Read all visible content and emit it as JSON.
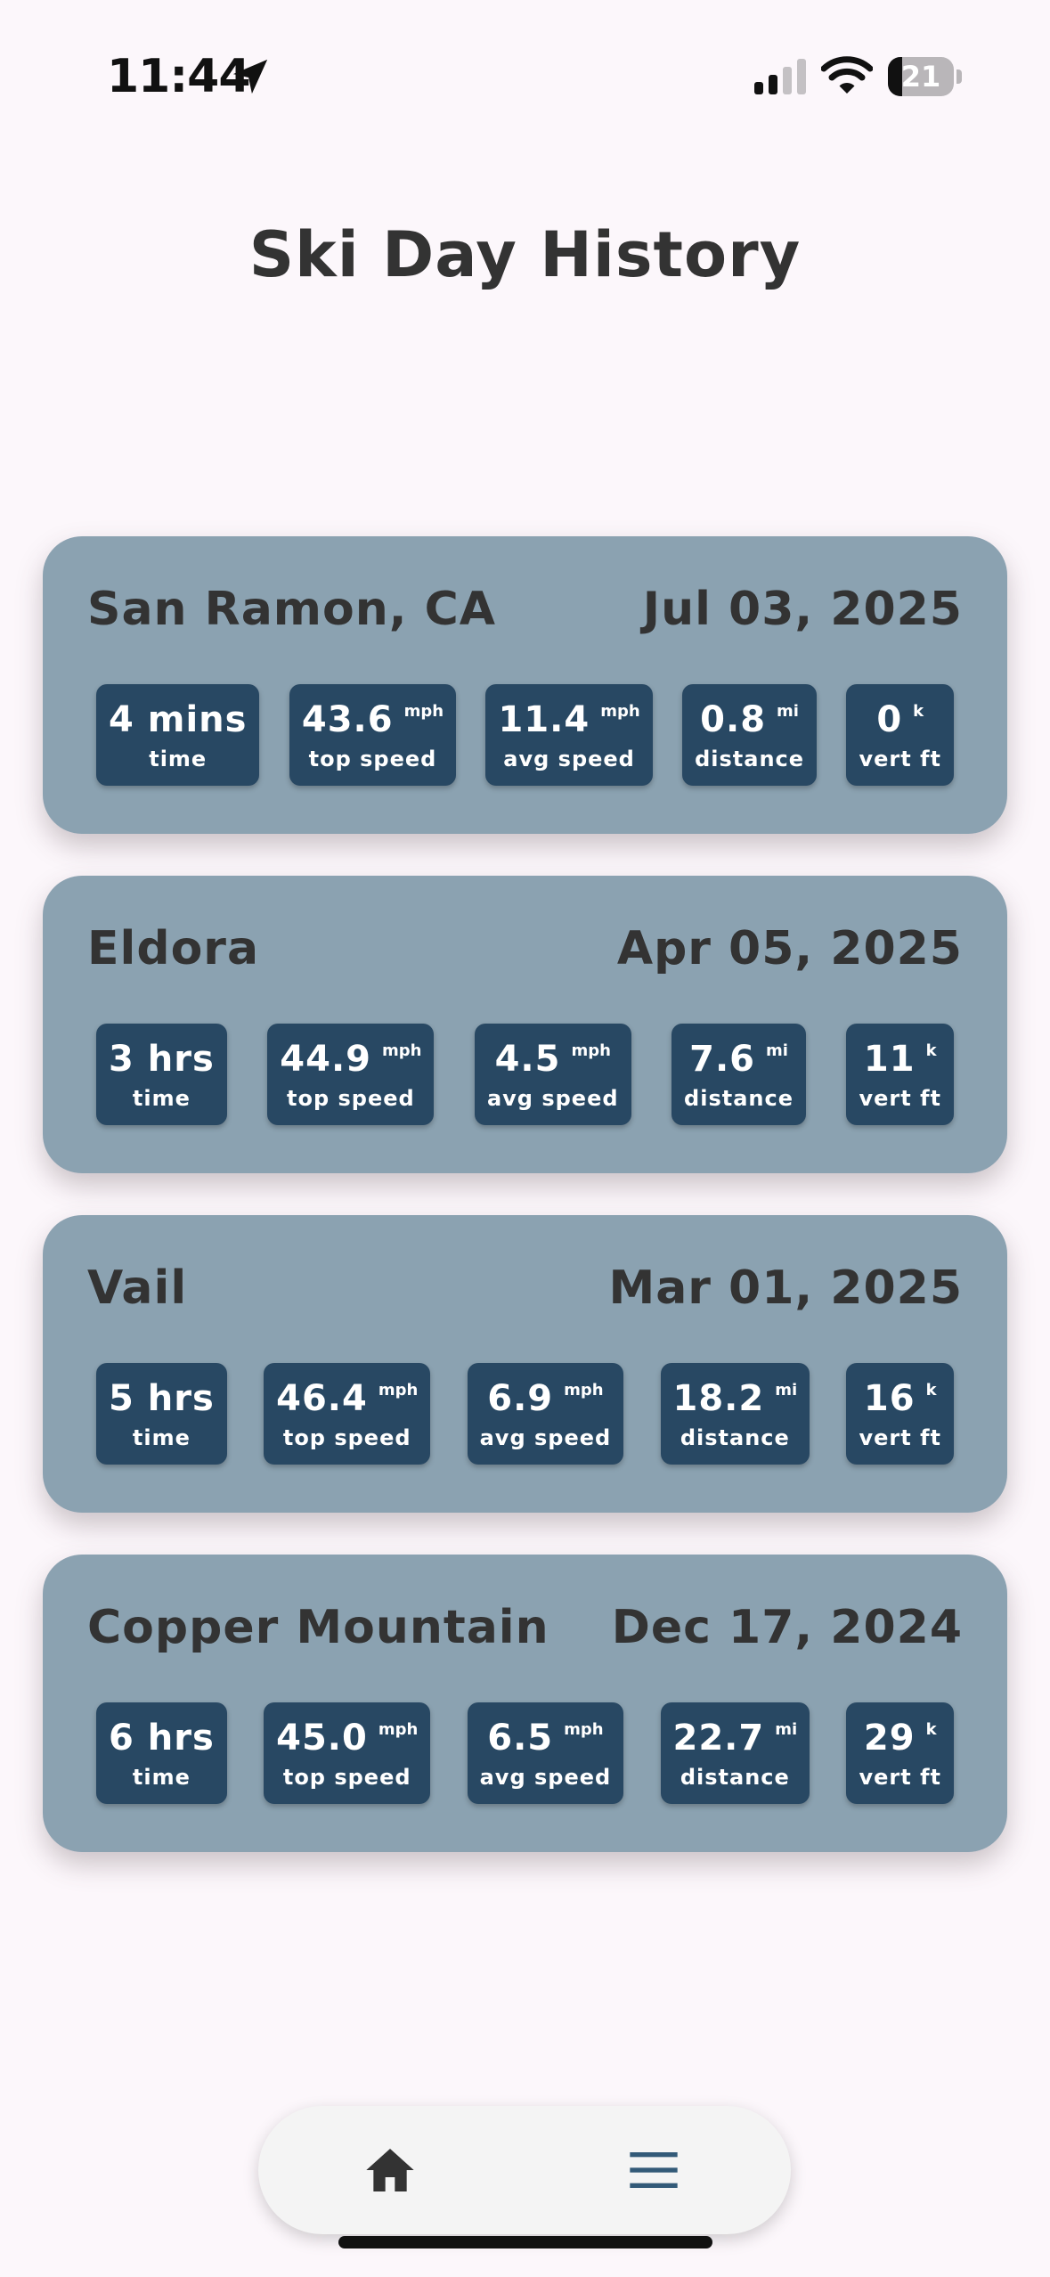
{
  "status_bar": {
    "time": "11:44",
    "battery": "21",
    "battery_level": 0.21
  },
  "title": "Ski Day History",
  "colors": {
    "background": "#fcf7fb",
    "card": "#8ba2b1",
    "stat_chip": "#284863",
    "text": "#333333"
  },
  "cards": [
    {
      "location": "San Ramon, CA",
      "date": "Jul 03, 2025",
      "stats": [
        {
          "value": "4 mins",
          "unit": "",
          "label": "time"
        },
        {
          "value": "43.6",
          "unit": "mph",
          "label": "top speed"
        },
        {
          "value": "11.4",
          "unit": "mph",
          "label": "avg speed"
        },
        {
          "value": "0.8",
          "unit": "mi",
          "label": "distance"
        },
        {
          "value": "0",
          "unit": "k",
          "label": "vert ft"
        }
      ]
    },
    {
      "location": "Eldora",
      "date": "Apr 05, 2025",
      "stats": [
        {
          "value": "3 hrs",
          "unit": "",
          "label": "time"
        },
        {
          "value": "44.9",
          "unit": "mph",
          "label": "top speed"
        },
        {
          "value": "4.5",
          "unit": "mph",
          "label": "avg speed"
        },
        {
          "value": "7.6",
          "unit": "mi",
          "label": "distance"
        },
        {
          "value": "11",
          "unit": "k",
          "label": "vert ft"
        }
      ]
    },
    {
      "location": "Vail",
      "date": "Mar 01, 2025",
      "stats": [
        {
          "value": "5 hrs",
          "unit": "",
          "label": "time"
        },
        {
          "value": "46.4",
          "unit": "mph",
          "label": "top speed"
        },
        {
          "value": "6.9",
          "unit": "mph",
          "label": "avg speed"
        },
        {
          "value": "18.2",
          "unit": "mi",
          "label": "distance"
        },
        {
          "value": "16",
          "unit": "k",
          "label": "vert ft"
        }
      ]
    },
    {
      "location": "Copper Mountain",
      "date": "Dec 17, 2024",
      "stats": [
        {
          "value": "6 hrs",
          "unit": "",
          "label": "time"
        },
        {
          "value": "45.0",
          "unit": "mph",
          "label": "top speed"
        },
        {
          "value": "6.5",
          "unit": "mph",
          "label": "avg speed"
        },
        {
          "value": "22.7",
          "unit": "mi",
          "label": "distance"
        },
        {
          "value": "29",
          "unit": "k",
          "label": "vert ft"
        }
      ]
    }
  ],
  "tab_bar": {
    "items": [
      {
        "icon": "home-icon"
      },
      {
        "icon": "menu-icon"
      }
    ]
  }
}
